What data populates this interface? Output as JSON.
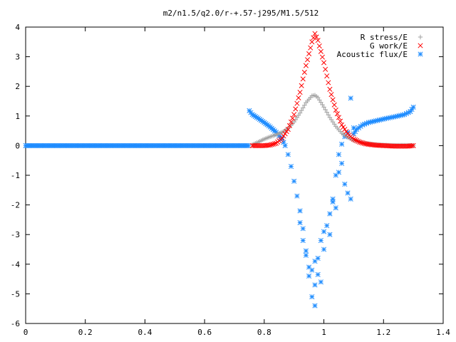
{
  "chart_data": {
    "type": "scatter",
    "title": "m2/n1.5/q2.0/r-+.57-j295/M1.5/512",
    "xlabel": "",
    "ylabel": "",
    "xlim": [
      0,
      1.4
    ],
    "ylim": [
      -6,
      4
    ],
    "xticks": [
      0,
      0.2,
      0.4,
      0.6,
      0.8,
      1,
      1.2,
      1.4
    ],
    "yticks": [
      -6,
      -5,
      -4,
      -3,
      -2,
      -1,
      0,
      1,
      2,
      3,
      4
    ],
    "grid": false,
    "legend_position": "top-right",
    "series": [
      {
        "name": "R stress/E",
        "marker": "+",
        "color": "#a0a0a0",
        "points": [
          [
            0.76,
            0.03
          ],
          [
            0.78,
            0.12
          ],
          [
            0.8,
            0.22
          ],
          [
            0.82,
            0.3
          ],
          [
            0.84,
            0.37
          ],
          [
            0.86,
            0.45
          ],
          [
            0.88,
            0.58
          ],
          [
            0.9,
            0.8
          ],
          [
            0.92,
            1.1
          ],
          [
            0.94,
            1.45
          ],
          [
            0.96,
            1.68
          ],
          [
            0.97,
            1.7
          ],
          [
            0.98,
            1.62
          ],
          [
            1.0,
            1.3
          ],
          [
            1.02,
            0.95
          ],
          [
            1.04,
            0.65
          ],
          [
            1.06,
            0.42
          ],
          [
            1.08,
            0.28
          ],
          [
            1.1,
            0.18
          ],
          [
            1.12,
            0.12
          ],
          [
            1.14,
            0.08
          ],
          [
            1.16,
            0.05
          ],
          [
            1.18,
            0.03
          ],
          [
            1.2,
            0.02
          ],
          [
            1.22,
            0.01
          ],
          [
            1.25,
            0.01
          ],
          [
            1.28,
            0.01
          ],
          [
            1.3,
            0.0
          ]
        ]
      },
      {
        "name": "G work/E",
        "marker": "x",
        "color": "#ff0000",
        "points": [
          [
            0.76,
            0.0
          ],
          [
            0.78,
            0.0
          ],
          [
            0.8,
            0.0
          ],
          [
            0.82,
            0.02
          ],
          [
            0.84,
            0.08
          ],
          [
            0.86,
            0.25
          ],
          [
            0.88,
            0.55
          ],
          [
            0.9,
            1.05
          ],
          [
            0.92,
            1.8
          ],
          [
            0.94,
            2.7
          ],
          [
            0.96,
            3.5
          ],
          [
            0.97,
            3.78
          ],
          [
            0.98,
            3.55
          ],
          [
            1.0,
            2.8
          ],
          [
            1.02,
            1.9
          ],
          [
            1.04,
            1.2
          ],
          [
            1.06,
            0.7
          ],
          [
            1.08,
            0.4
          ],
          [
            1.1,
            0.22
          ],
          [
            1.12,
            0.12
          ],
          [
            1.14,
            0.06
          ],
          [
            1.16,
            0.03
          ],
          [
            1.18,
            0.01
          ],
          [
            1.2,
            0.0
          ],
          [
            1.24,
            -0.02
          ],
          [
            1.28,
            -0.02
          ],
          [
            1.3,
            0.0
          ]
        ]
      },
      {
        "name": "Acoustic flux/E",
        "marker": "*",
        "color": "#1e8cff",
        "points": [
          [
            0.75,
            1.18
          ],
          [
            0.76,
            1.05
          ],
          [
            0.78,
            0.92
          ],
          [
            0.8,
            0.78
          ],
          [
            0.82,
            0.63
          ],
          [
            0.84,
            0.45
          ],
          [
            0.86,
            0.22
          ],
          [
            0.87,
            0.0
          ],
          [
            0.88,
            -0.3
          ],
          [
            0.89,
            -0.7
          ],
          [
            0.9,
            -1.2
          ],
          [
            0.91,
            -1.7
          ],
          [
            0.92,
            -2.2
          ],
          [
            0.92,
            -2.6
          ],
          [
            0.93,
            -2.8
          ],
          [
            0.93,
            -3.2
          ],
          [
            0.94,
            -3.55
          ],
          [
            0.94,
            -3.7
          ],
          [
            0.95,
            -4.1
          ],
          [
            0.95,
            -4.4
          ],
          [
            0.96,
            -4.2
          ],
          [
            0.96,
            -5.1
          ],
          [
            0.97,
            -5.4
          ],
          [
            0.97,
            -4.7
          ],
          [
            0.97,
            -3.9
          ],
          [
            0.98,
            -4.35
          ],
          [
            0.98,
            -3.8
          ],
          [
            0.99,
            -4.6
          ],
          [
            0.99,
            -3.2
          ],
          [
            1.0,
            -3.5
          ],
          [
            1.0,
            -2.9
          ],
          [
            1.01,
            -2.7
          ],
          [
            1.02,
            -3.0
          ],
          [
            1.02,
            -2.3
          ],
          [
            1.03,
            -1.9
          ],
          [
            1.03,
            -1.8
          ],
          [
            1.04,
            -2.1
          ],
          [
            1.04,
            -1.0
          ],
          [
            1.05,
            -0.9
          ],
          [
            1.05,
            -0.3
          ],
          [
            1.06,
            0.05
          ],
          [
            1.06,
            -0.6
          ],
          [
            1.07,
            0.3
          ],
          [
            1.07,
            -1.3
          ],
          [
            1.08,
            -1.6
          ],
          [
            1.08,
            0.45
          ],
          [
            1.09,
            1.6
          ],
          [
            1.09,
            -1.8
          ],
          [
            1.1,
            0.6
          ],
          [
            1.1,
            0.4
          ],
          [
            1.11,
            0.55
          ],
          [
            1.13,
            0.7
          ],
          [
            1.15,
            0.78
          ],
          [
            1.18,
            0.85
          ],
          [
            1.21,
            0.92
          ],
          [
            1.24,
            0.98
          ],
          [
            1.27,
            1.05
          ],
          [
            1.29,
            1.15
          ],
          [
            1.3,
            1.3
          ]
        ],
        "baseline_zero_x_range": [
          0,
          0.75
        ]
      }
    ]
  }
}
